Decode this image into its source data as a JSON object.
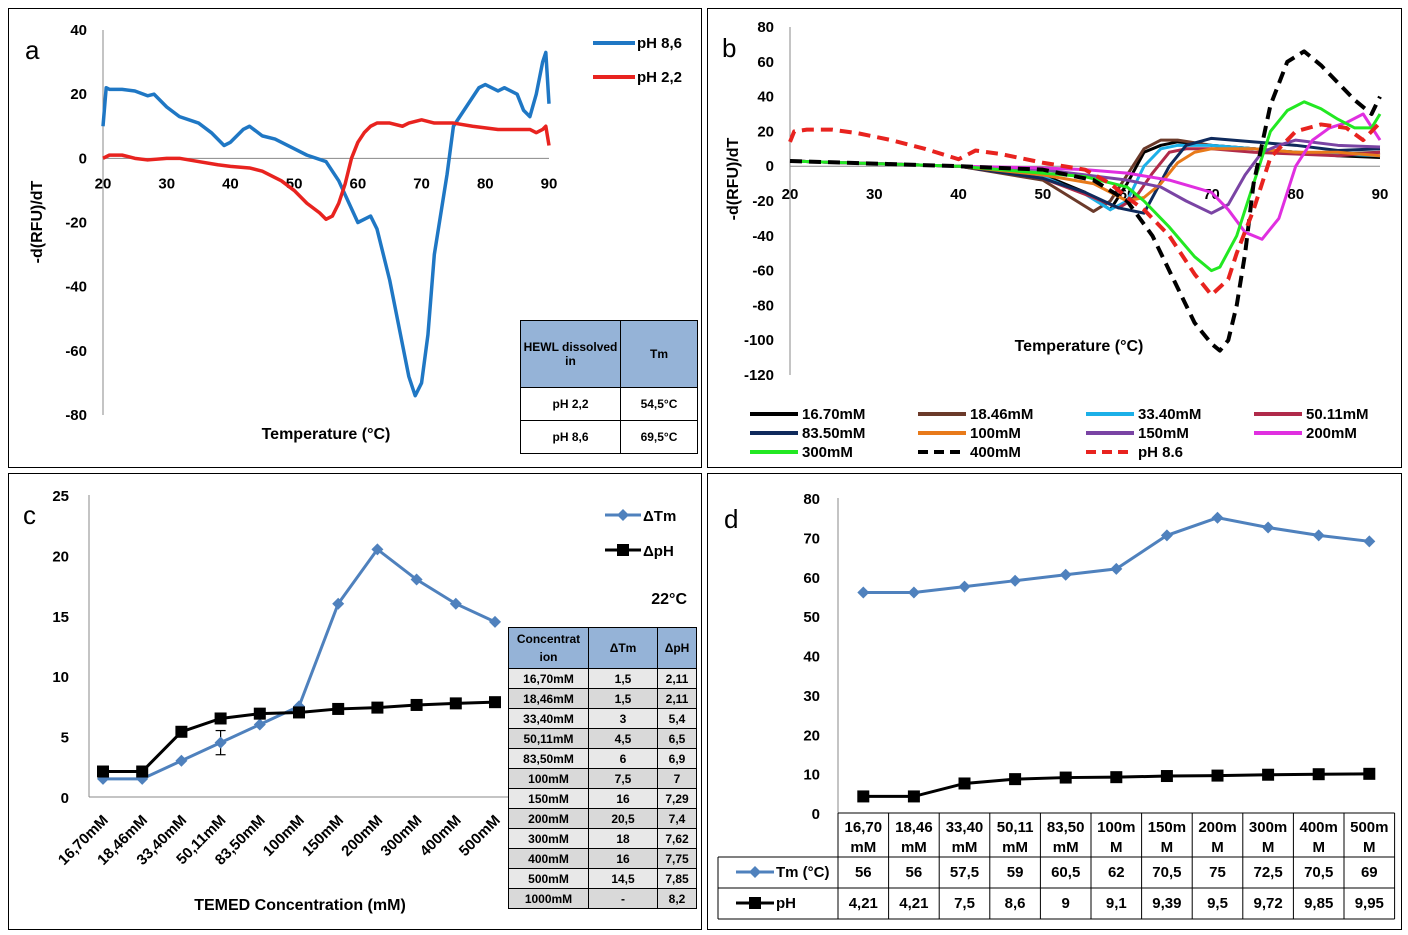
{
  "chart_data": [
    {
      "panel": "a",
      "type": "line",
      "xlabel": "Temperature (°C)",
      "ylabel": "-d(RFU)/dT",
      "xlim": [
        20,
        90
      ],
      "ylim": [
        -80,
        40
      ],
      "xticks": [
        "20",
        "30",
        "40",
        "50",
        "60",
        "70",
        "80",
        "90"
      ],
      "yticks": [
        "40",
        "20",
        "0",
        "-20",
        "-40",
        "-60",
        "-80"
      ],
      "legend_position": "top-right",
      "series": [
        {
          "name": "pH 8,6",
          "color": "#1f77c4",
          "x": [
            20,
            20.5,
            21,
            23,
            25,
            27,
            28,
            30,
            32,
            35,
            37,
            39,
            40,
            42,
            43,
            45,
            47,
            50,
            52,
            55,
            57,
            60,
            62,
            63,
            65,
            67,
            68,
            69,
            70,
            71,
            72,
            74,
            75,
            77,
            79,
            80,
            82,
            83,
            85,
            86,
            87,
            88,
            89,
            89.5,
            90
          ],
          "y": [
            10,
            22,
            21.5,
            21.5,
            21,
            19.5,
            20,
            16,
            13,
            11,
            8,
            4,
            5,
            9,
            10,
            7,
            6,
            3,
            1,
            -1,
            -7,
            -20,
            -18,
            -22,
            -38,
            -58,
            -68,
            -74,
            -70,
            -55,
            -30,
            -5,
            10,
            16,
            22,
            23,
            21,
            22,
            20,
            15,
            13,
            20,
            30,
            33,
            17
          ]
        },
        {
          "name": "pH 2,2",
          "color": "#e8231f",
          "x": [
            20,
            21,
            23,
            25,
            27,
            30,
            32,
            35,
            38,
            40,
            43,
            45,
            48,
            50,
            52,
            54,
            55,
            56,
            57,
            58,
            59,
            60,
            61,
            62,
            63,
            65,
            67,
            68,
            70,
            72,
            75,
            78,
            80,
            82,
            85,
            87,
            88,
            89,
            89.5,
            90
          ],
          "y": [
            0,
            1,
            1,
            0,
            -0.5,
            0,
            0,
            -1,
            -2,
            -2.5,
            -3,
            -4,
            -7,
            -10,
            -14,
            -17,
            -19,
            -18,
            -14,
            -8,
            0,
            5,
            8,
            10,
            11,
            11,
            10,
            11,
            12,
            11,
            11,
            10,
            9.5,
            9,
            9,
            9,
            8,
            9,
            10,
            4
          ]
        }
      ],
      "table": {
        "headers": [
          "HEWL dissolved in",
          "Tm"
        ],
        "rows": [
          [
            "pH 2,2",
            "54,5°C"
          ],
          [
            "pH 8,6",
            "69,5°C"
          ]
        ]
      }
    },
    {
      "panel": "b",
      "type": "line",
      "xlabel": "Temperature (°C)",
      "ylabel": "-d(RFU)/dT",
      "xlim": [
        20,
        90
      ],
      "ylim": [
        -120,
        80
      ],
      "xticks": [
        "20",
        "30",
        "40",
        "50",
        "60",
        "70",
        "80",
        "90"
      ],
      "yticks": [
        "80",
        "60",
        "40",
        "20",
        "0",
        "-20",
        "-40",
        "-60",
        "-80",
        "-100",
        "-120"
      ],
      "legend_position": "bottom",
      "series": [
        {
          "name": "16.70mM",
          "color": "#000000",
          "dash": false,
          "x": [
            20,
            40,
            50,
            55,
            58,
            60,
            62,
            64,
            66,
            70,
            75,
            80,
            85,
            90
          ],
          "y": [
            3,
            0,
            -5,
            -15,
            -25,
            -10,
            8,
            12,
            14,
            12,
            10,
            8,
            6,
            5
          ]
        },
        {
          "name": "18.46mM",
          "color": "#6b3a2a",
          "dash": false,
          "x": [
            20,
            40,
            50,
            54,
            56,
            58,
            60,
            62,
            64,
            66,
            70,
            75,
            80,
            85,
            90
          ],
          "y": [
            3,
            0,
            -8,
            -20,
            -26,
            -20,
            -5,
            10,
            15,
            15,
            12,
            10,
            8,
            7,
            8
          ]
        },
        {
          "name": "33.40mM",
          "color": "#1cb0e8",
          "dash": false,
          "x": [
            20,
            40,
            50,
            55,
            58,
            60,
            62,
            64,
            66,
            70,
            75,
            80,
            85,
            90
          ],
          "y": [
            3,
            0,
            -6,
            -16,
            -25,
            -20,
            0,
            10,
            12,
            12,
            10,
            8,
            7,
            6
          ]
        },
        {
          "name": "50.11mM",
          "color": "#b02a4a",
          "dash": false,
          "x": [
            20,
            40,
            50,
            56,
            59,
            61,
            63,
            65,
            67,
            70,
            75,
            80,
            85,
            90
          ],
          "y": [
            3,
            0,
            -7,
            -18,
            -24,
            -18,
            -4,
            8,
            10,
            10,
            8,
            7,
            6,
            8
          ]
        },
        {
          "name": "83.50mM",
          "color": "#0f2a5c",
          "dash": false,
          "x": [
            20,
            40,
            50,
            55,
            59,
            62,
            63,
            65,
            67,
            70,
            75,
            80,
            85,
            90
          ],
          "y": [
            3,
            0,
            -7,
            -15,
            -24,
            -27,
            -18,
            0,
            12,
            16,
            14,
            12,
            9,
            10
          ]
        },
        {
          "name": "100mM",
          "color": "#e87a1a",
          "dash": false,
          "x": [
            20,
            40,
            50,
            56,
            60,
            62,
            64,
            66,
            68,
            70,
            75,
            80,
            85,
            90
          ],
          "y": [
            3,
            0,
            -5,
            -10,
            -20,
            -18,
            -10,
            2,
            8,
            10,
            10,
            8,
            8,
            6
          ]
        },
        {
          "name": "150mM",
          "color": "#7a44a4",
          "dash": false,
          "x": [
            20,
            40,
            50,
            55,
            60,
            64,
            67,
            70,
            72,
            74,
            76,
            78,
            80,
            85,
            90
          ],
          "y": [
            3,
            0,
            -2,
            -5,
            -8,
            -12,
            -20,
            -27,
            -22,
            -5,
            8,
            12,
            15,
            12,
            11
          ]
        },
        {
          "name": "200mM",
          "color": "#e02fe0",
          "dash": false,
          "x": [
            20,
            40,
            50,
            55,
            60,
            65,
            70,
            72,
            74,
            76,
            78,
            80,
            82,
            84,
            86,
            88,
            90
          ],
          "y": [
            3,
            0,
            -1,
            -2,
            -4,
            -8,
            -15,
            -25,
            -38,
            -42,
            -30,
            0,
            15,
            22,
            25,
            30,
            15
          ]
        },
        {
          "name": "300mM",
          "color": "#22e822",
          "dash": false,
          "x": [
            20,
            40,
            50,
            55,
            60,
            62,
            65,
            68,
            70,
            71,
            73,
            75,
            77,
            79,
            81,
            83,
            85,
            87,
            89,
            90
          ],
          "y": [
            3,
            0,
            -4,
            -6,
            -12,
            -20,
            -35,
            -52,
            -60,
            -58,
            -40,
            -10,
            20,
            32,
            37,
            33,
            27,
            22,
            22,
            30
          ]
        },
        {
          "name": "400mM",
          "color": "#000000",
          "dash": true,
          "x": [
            20,
            40,
            50,
            56,
            60,
            63,
            66,
            68,
            70,
            71,
            72,
            73,
            74,
            75,
            77,
            79,
            81,
            83,
            85,
            87,
            89,
            90
          ],
          "y": [
            3,
            0,
            -2,
            -8,
            -20,
            -40,
            -70,
            -90,
            -102,
            -106,
            -100,
            -80,
            -50,
            -10,
            35,
            60,
            66,
            58,
            48,
            38,
            30,
            40
          ]
        },
        {
          "name": "pH 8.6",
          "color": "#e8231f",
          "dash": true,
          "x": [
            20,
            20.5,
            22,
            25,
            28,
            32,
            36,
            40,
            42,
            45,
            50,
            55,
            58,
            60,
            62,
            65,
            68,
            70,
            72,
            73,
            75,
            77,
            80,
            83,
            86,
            88,
            90
          ],
          "y": [
            14,
            20,
            21,
            21,
            19,
            15,
            10,
            4,
            9,
            7,
            2,
            -2,
            -10,
            -18,
            -25,
            -40,
            -62,
            -74,
            -65,
            -50,
            -25,
            5,
            20,
            24,
            22,
            15,
            25
          ]
        }
      ]
    },
    {
      "panel": "c",
      "type": "line",
      "title": "22°C",
      "xlabel": "TEMED Concentration (mM)",
      "ylabel": "",
      "ylim": [
        0,
        25
      ],
      "yticks": [
        "25",
        "20",
        "15",
        "10",
        "5",
        "0"
      ],
      "categories": [
        "16,70mM",
        "18,46mM",
        "33,40mM",
        "50,11mM",
        "83,50mM",
        "100mM",
        "150mM",
        "200mM",
        "300mM",
        "400mM",
        "500mM"
      ],
      "legend_position": "top-right",
      "series": [
        {
          "name": "ΔTm",
          "color": "#4f81bd",
          "marker": "diamond",
          "values": [
            1.5,
            1.5,
            3,
            4.5,
            6,
            7.5,
            16,
            20.5,
            18,
            16,
            14.5
          ]
        },
        {
          "name": "ΔpH",
          "color": "#000000",
          "marker": "square",
          "values": [
            2.11,
            2.11,
            5.4,
            6.5,
            6.9,
            7,
            7.29,
            7.4,
            7.62,
            7.75,
            7.85
          ]
        }
      ],
      "table": {
        "headers": [
          "Concentrat ion",
          "ΔTm",
          "ΔpH"
        ],
        "rows": [
          [
            "16,70mM",
            "1,5",
            "2,11"
          ],
          [
            "18,46mM",
            "1,5",
            "2,11"
          ],
          [
            "33,40mM",
            "3",
            "5,4"
          ],
          [
            "50,11mM",
            "4,5",
            "6,5"
          ],
          [
            "83,50mM",
            "6",
            "6,9"
          ],
          [
            "100mM",
            "7,5",
            "7"
          ],
          [
            "150mM",
            "16",
            "7,29"
          ],
          [
            "200mM",
            "20,5",
            "7,4"
          ],
          [
            "300mM",
            "18",
            "7,62"
          ],
          [
            "400mM",
            "16",
            "7,75"
          ],
          [
            "500mM",
            "14,5",
            "7,85"
          ],
          [
            "1000mM",
            "-",
            "8,2"
          ]
        ]
      }
    },
    {
      "panel": "d",
      "type": "line",
      "ylim": [
        0,
        80
      ],
      "yticks": [
        "80",
        "70",
        "60",
        "50",
        "40",
        "30",
        "20",
        "10",
        "0"
      ],
      "categories": [
        [
          "16,70",
          "mM"
        ],
        [
          "18,46",
          "mM"
        ],
        [
          "33,40",
          "mM"
        ],
        [
          "50,11",
          "mM"
        ],
        [
          "83,50",
          "mM"
        ],
        [
          "100m",
          "M"
        ],
        [
          "150m",
          "M"
        ],
        [
          "200m",
          "M"
        ],
        [
          "300m",
          "M"
        ],
        [
          "400m",
          "M"
        ],
        [
          "500m",
          "M"
        ]
      ],
      "series": [
        {
          "name": "Tm (°C)",
          "color": "#4f81bd",
          "marker": "diamond",
          "values": [
            56,
            56,
            57.5,
            59,
            60.5,
            62,
            70.5,
            75,
            72.5,
            70.5,
            69
          ],
          "labels": [
            "56",
            "56",
            "57,5",
            "59",
            "60,5",
            "62",
            "70,5",
            "75",
            "72,5",
            "70,5",
            "69"
          ]
        },
        {
          "name": "pH",
          "color": "#000000",
          "marker": "square",
          "values": [
            4.21,
            4.21,
            7.5,
            8.6,
            9,
            9.1,
            9.39,
            9.5,
            9.72,
            9.85,
            9.95
          ],
          "labels": [
            "4,21",
            "4,21",
            "7,5",
            "8,6",
            "9",
            "9,1",
            "9,39",
            "9,5",
            "9,72",
            "9,85",
            "9,95"
          ]
        }
      ]
    }
  ],
  "panels": {
    "a": "a",
    "b": "b",
    "c": "c",
    "d": "d"
  }
}
